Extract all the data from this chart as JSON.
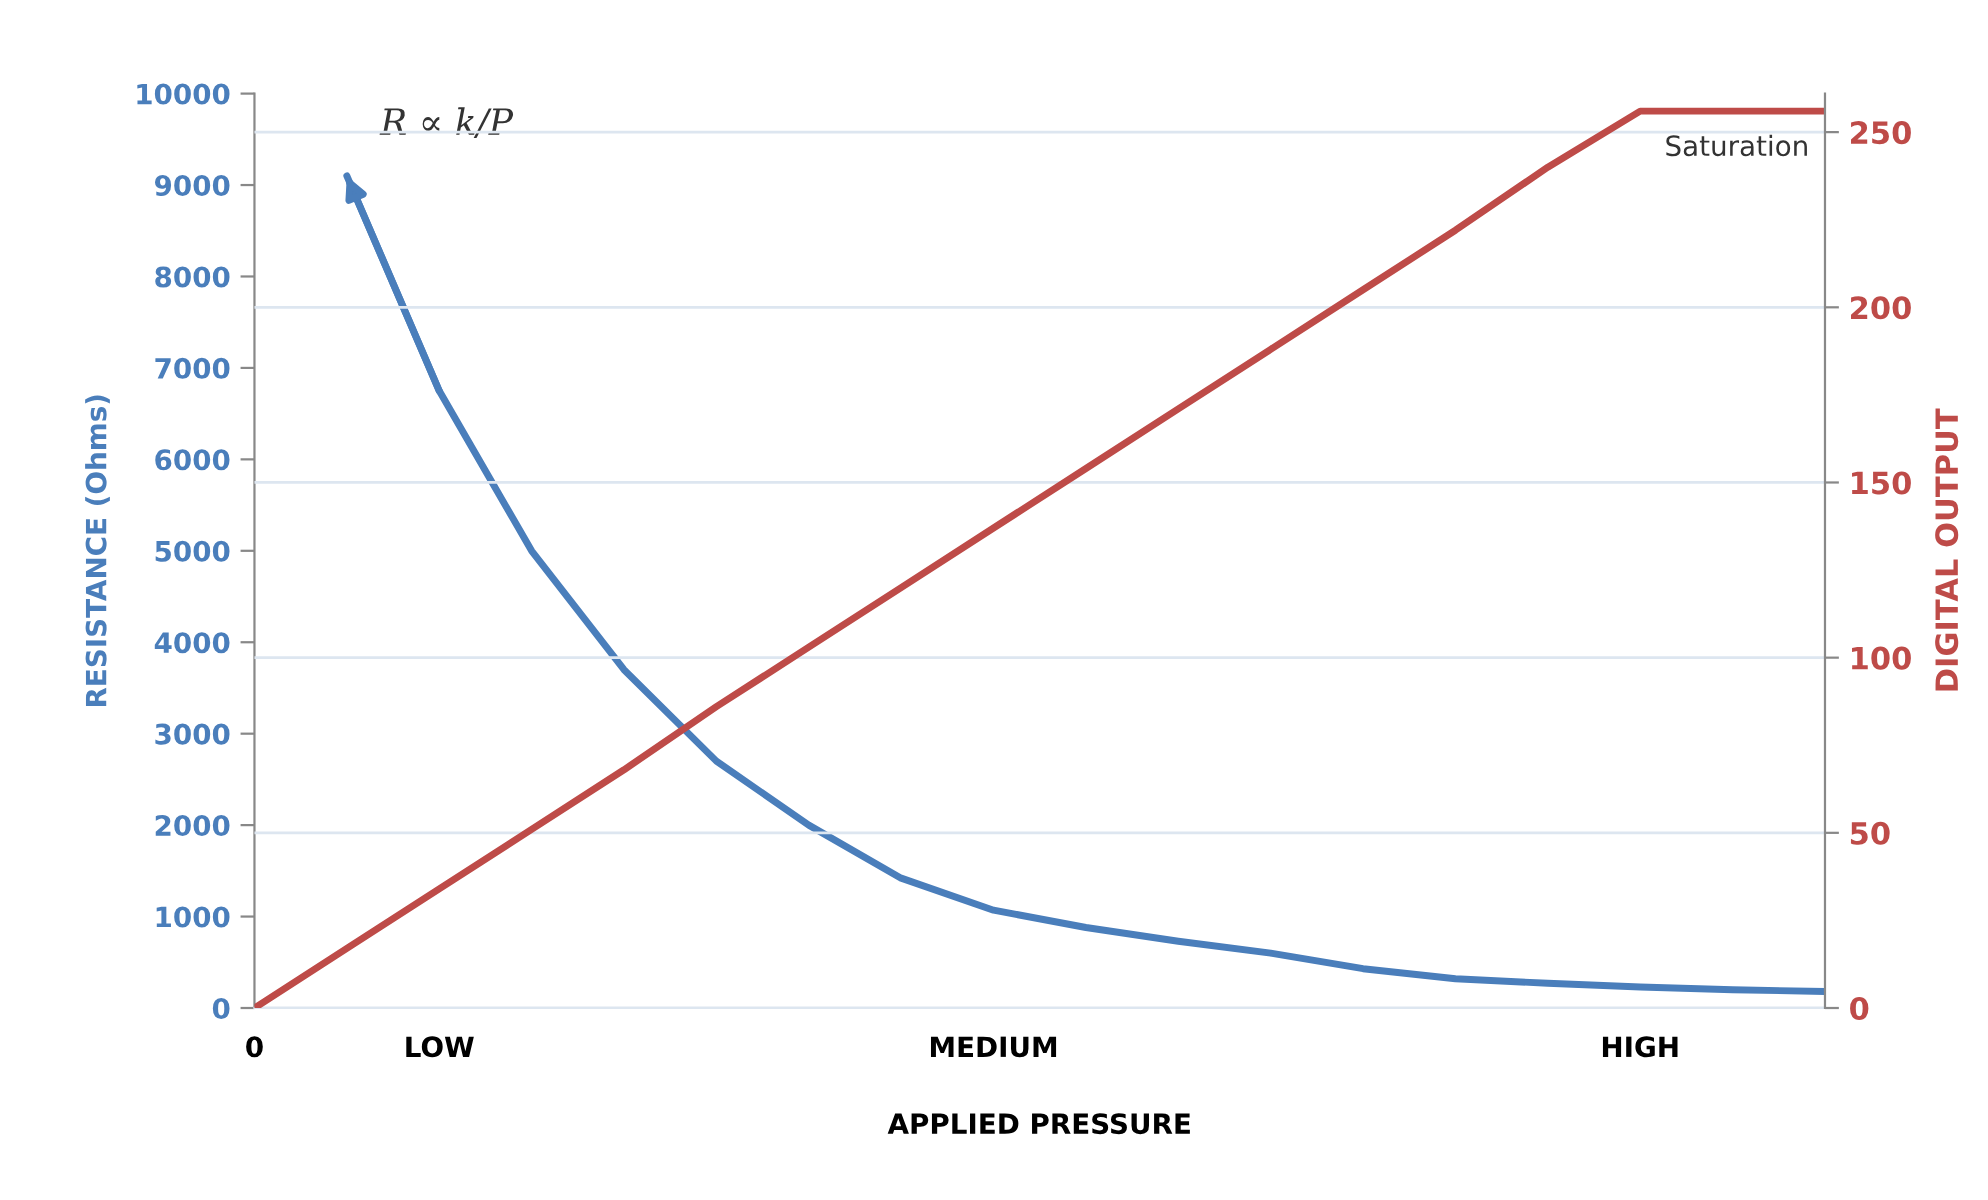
{
  "chart_data": {
    "type": "line",
    "xlabel": "APPLIED PRESSURE",
    "ylabel": "RESISTANCE (Ohms)",
    "y2label": "DIGITAL OUTPUT",
    "categories": [
      "0",
      null,
      "LOW",
      null,
      null,
      null,
      null,
      null,
      "MEDIUM",
      null,
      null,
      null,
      null,
      null,
      null,
      "HIGH",
      null,
      null
    ],
    "ylim": [
      0,
      10000
    ],
    "yticks": [
      0,
      1000,
      2000,
      3000,
      4000,
      5000,
      6000,
      7000,
      8000,
      9000,
      10000
    ],
    "y2lim": [
      0,
      261
    ],
    "y2ticks": [
      0,
      50,
      100,
      150,
      200,
      250
    ],
    "grid": "y2",
    "marker": "none",
    "line_style": "solid",
    "series": [
      {
        "color": "#4a7ebb",
        "values": [
          null,
          9100,
          6750,
          5000,
          3700,
          2700,
          2000,
          1420,
          1070,
          880,
          730,
          600,
          430,
          320,
          270,
          230,
          200,
          180
        ]
      },
      {
        "color": "#be4b48",
        "axis": "y2",
        "values": [
          0,
          17,
          34,
          51,
          68,
          86,
          103,
          120,
          137,
          154,
          171,
          188,
          205,
          222,
          240,
          256,
          256,
          256
        ]
      }
    ],
    "annotations": [
      "R ∝ k/P",
      "Saturation"
    ]
  }
}
